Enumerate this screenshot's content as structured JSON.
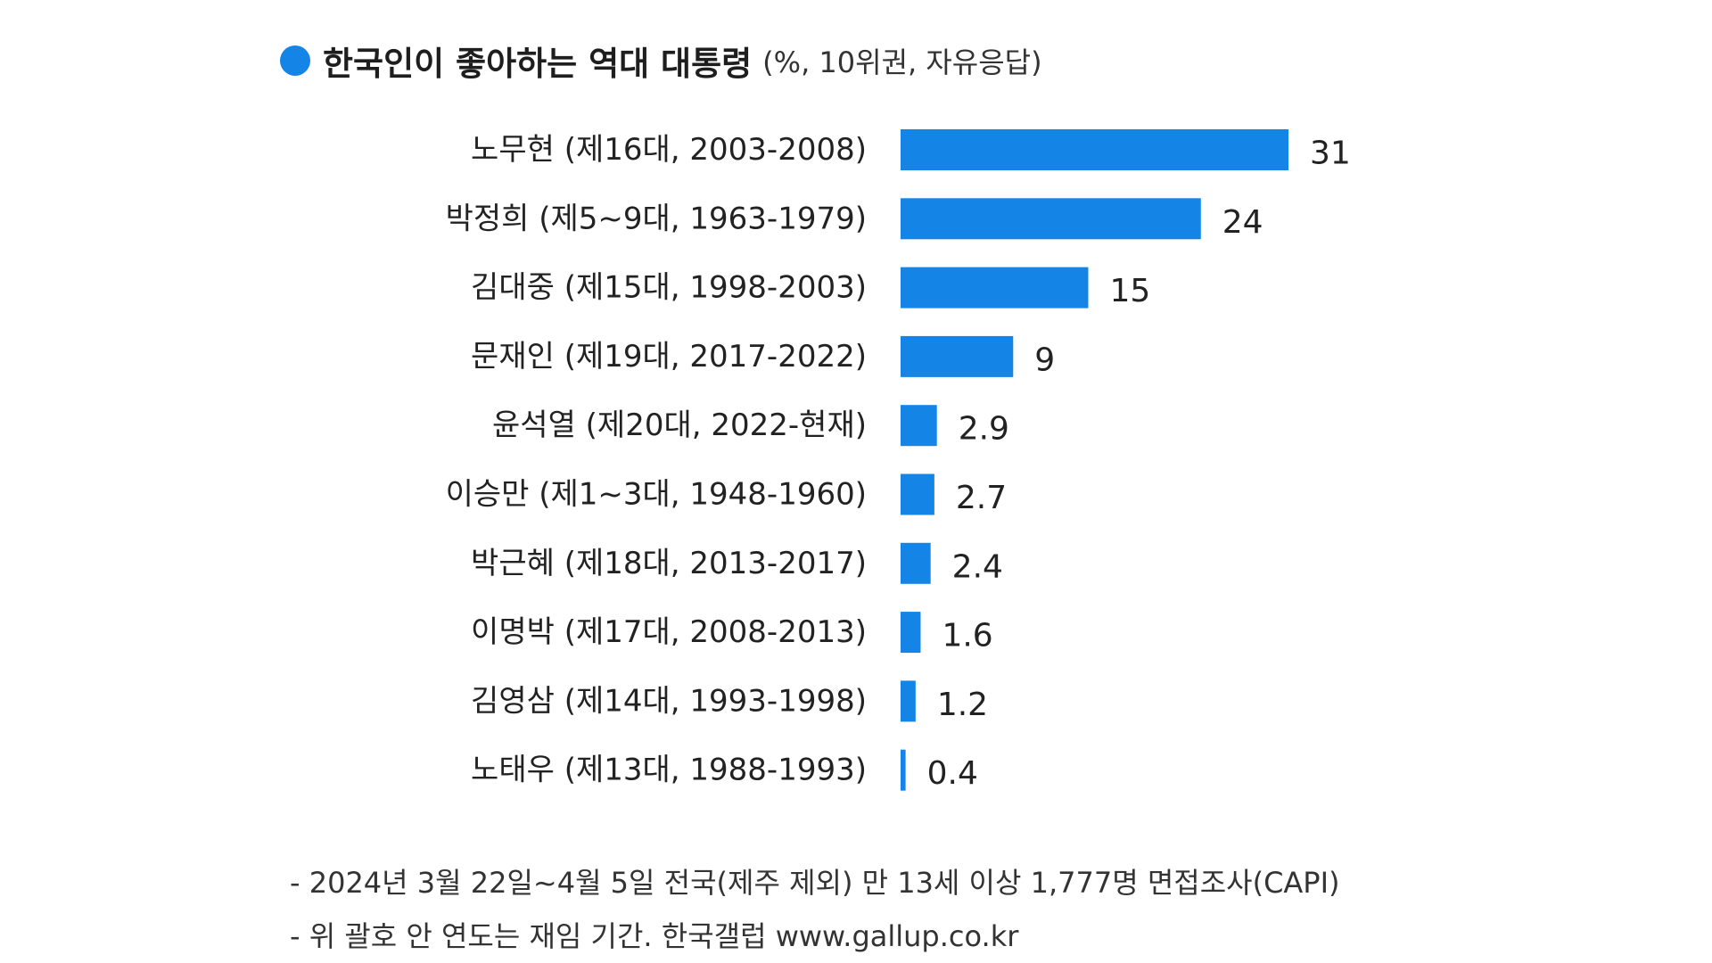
{
  "colors": {
    "bar": "#1484e6",
    "text": "#222222"
  },
  "header": {
    "title": "한국인이 좋아하는 역대 대통령",
    "subtitle": "(%, 10위권, 자유응답)"
  },
  "chart_data": {
    "type": "bar",
    "orientation": "horizontal",
    "title": "한국인이 좋아하는 역대 대통령",
    "subtitle": "(%, 10위권, 자유응답)",
    "categories": [
      "노무현 (제16대, 2003-2008)",
      "박정희 (제5~9대, 1963-1979)",
      "김대중 (제15대, 1998-2003)",
      "문재인 (제19대, 2017-2022)",
      "윤석열 (제20대, 2022-현재)",
      "이승만 (제1~3대, 1948-1960)",
      "박근혜 (제18대, 2013-2017)",
      "이명박 (제17대, 2008-2013)",
      "김영삼 (제14대, 1993-1998)",
      "노태우 (제13대, 1988-1993)"
    ],
    "values": [
      31,
      24,
      15,
      9,
      2.9,
      2.7,
      2.4,
      1.6,
      1.2,
      0.4
    ],
    "value_labels": [
      "31",
      "24",
      "15",
      "9",
      "2.9",
      "2.7",
      "2.4",
      "1.6",
      "1.2",
      "0.4"
    ],
    "xlim": [
      0,
      31
    ],
    "grid": false,
    "legend": "none"
  },
  "footnotes": [
    "- 2024년 3월 22일~4월 5일 전국(제주 제외) 만 13세 이상 1,777명 면접조사(CAPI)",
    "- 위 괄호 안 연도는 재임 기간. 한국갤럽 www.gallup.co.kr"
  ]
}
